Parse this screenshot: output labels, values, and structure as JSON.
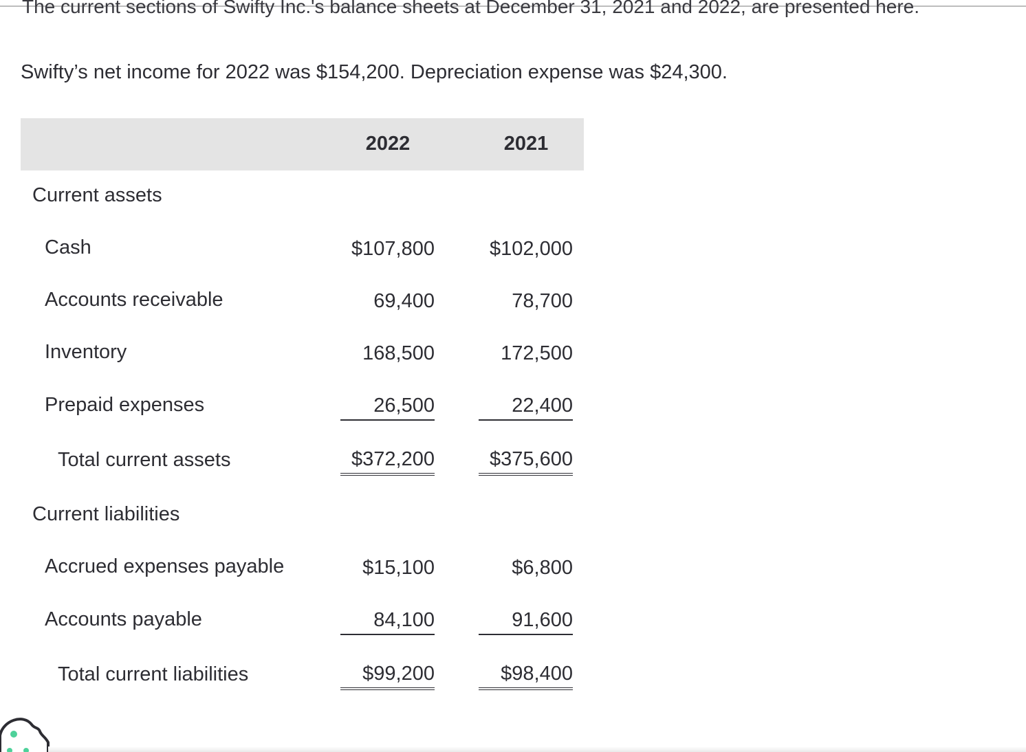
{
  "intro_text": "The current sections of Swifty Inc.'s balance sheets at December 31, 2021 and 2022, are presented here.",
  "net_income_text": "Swifty’s net income for 2022 was $154,200. Depreciation expense was $24,300.",
  "table": {
    "headers": [
      "2022",
      "2021"
    ],
    "current_assets_label": "Current assets",
    "cash": {
      "label": "Cash",
      "v2022": "$107,800",
      "v2021": "$102,000"
    },
    "accounts_receivable": {
      "label": "Accounts receivable",
      "v2022": "69,400",
      "v2021": "78,700"
    },
    "inventory": {
      "label": "Inventory",
      "v2022": "168,500",
      "v2021": "172,500"
    },
    "prepaid_expenses": {
      "label": "Prepaid expenses",
      "v2022": "26,500",
      "v2021": "22,400"
    },
    "total_current_assets": {
      "label": "Total current assets",
      "v2022": "$372,200",
      "v2021": "$375,600"
    },
    "current_liabilities_label": "Current liabilities",
    "accrued_expenses_payable": {
      "label": "Accrued expenses payable",
      "v2022": "$15,100",
      "v2021": "$6,800"
    },
    "accounts_payable": {
      "label": "Accounts payable",
      "v2022": "84,100",
      "v2021": "91,600"
    },
    "total_current_liabilities": {
      "label": "Total current liabilities",
      "v2022": "$99,200",
      "v2021": "$98,400"
    }
  },
  "colors": {
    "text": "#2d2d33",
    "header_band": "#e4e4e4",
    "cookie_stroke": "#2d2d33",
    "cookie_dots": "#4ed19a"
  },
  "icons": {
    "cookie": "cookie-icon"
  }
}
